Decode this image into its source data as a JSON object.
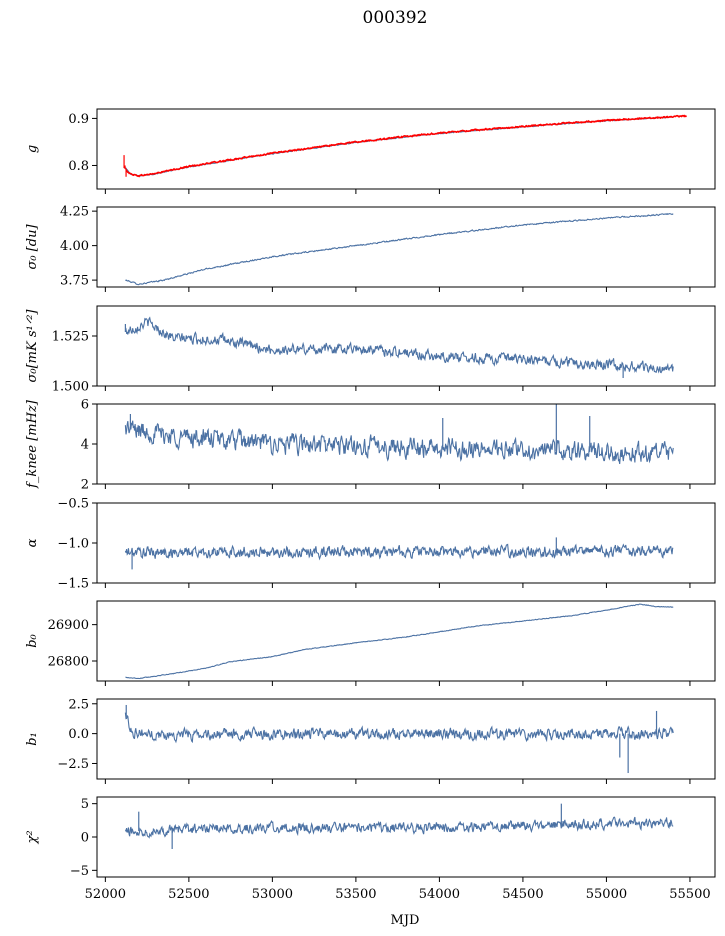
{
  "title": "000392",
  "colors": {
    "series": "#4c72a4",
    "overlay": "#ff0000",
    "frame": "#000000",
    "background": "#ffffff"
  },
  "chart_data": {
    "type": "line",
    "x_label": "MJD",
    "x_range": [
      51950,
      55650
    ],
    "x_ticks": [
      52000,
      52500,
      53000,
      53500,
      54000,
      54500,
      55000,
      55500
    ],
    "x_tick_labels": [
      "52000",
      "52500",
      "53000",
      "53500",
      "54000",
      "54500",
      "55000",
      "55500"
    ],
    "x_data_range": [
      52120,
      55400
    ],
    "panels": [
      {
        "ylabel": "g",
        "ylim": [
          0.75,
          0.92
        ],
        "yticks": [
          0.8,
          0.9
        ],
        "ytick_labels": [
          "0.8",
          "0.9"
        ],
        "series": [
          {
            "color": "series",
            "profile": [
              [
                52120,
                0.795
              ],
              [
                52150,
                0.782
              ],
              [
                52200,
                0.778
              ],
              [
                52300,
                0.782
              ],
              [
                52500,
                0.797
              ],
              [
                53000,
                0.825
              ],
              [
                53500,
                0.849
              ],
              [
                54000,
                0.868
              ],
              [
                54500,
                0.882
              ],
              [
                55000,
                0.895
              ],
              [
                55400,
                0.903
              ]
            ],
            "noise": 0.0008,
            "spikes": []
          },
          {
            "color": "overlay",
            "x_end": 55480,
            "profile": [
              [
                52110,
                0.795
              ],
              [
                52150,
                0.782
              ],
              [
                52200,
                0.778
              ],
              [
                52300,
                0.783
              ],
              [
                52500,
                0.798
              ],
              [
                53000,
                0.826
              ],
              [
                53500,
                0.85
              ],
              [
                54000,
                0.869
              ],
              [
                54500,
                0.883
              ],
              [
                55000,
                0.896
              ],
              [
                55480,
                0.905
              ]
            ],
            "noise": 0.0012,
            "spikes": [
              [
                52112,
                0.822
              ],
              [
                52118,
                0.8
              ],
              [
                52124,
                0.776
              ]
            ]
          }
        ]
      },
      {
        "ylabel": "σ₀ [du]",
        "ylim": [
          3.7,
          4.28
        ],
        "yticks": [
          3.75,
          4.0,
          4.25
        ],
        "ytick_labels": [
          "3.75",
          "4.00",
          "4.25"
        ],
        "series": [
          {
            "color": "series",
            "profile": [
              [
                52120,
                3.75
              ],
              [
                52200,
                3.72
              ],
              [
                52350,
                3.75
              ],
              [
                52600,
                3.83
              ],
              [
                53000,
                3.92
              ],
              [
                53500,
                4.0
              ],
              [
                54000,
                4.08
              ],
              [
                54500,
                4.15
              ],
              [
                55000,
                4.2
              ],
              [
                55400,
                4.23
              ]
            ],
            "noise": 0.004,
            "spikes": []
          }
        ]
      },
      {
        "ylabel": "σ₀[mK s¹ᐟ²]",
        "ylim": [
          1.5,
          1.54
        ],
        "yticks": [
          1.5,
          1.525
        ],
        "ytick_labels": [
          "1.500",
          "1.525"
        ],
        "series": [
          {
            "color": "series",
            "profile": [
              [
                52120,
                1.527
              ],
              [
                52250,
                1.532
              ],
              [
                52400,
                1.524
              ],
              [
                52700,
                1.523
              ],
              [
                53000,
                1.518
              ],
              [
                53500,
                1.519
              ],
              [
                54000,
                1.515
              ],
              [
                54500,
                1.513
              ],
              [
                55000,
                1.511
              ],
              [
                55400,
                1.508
              ]
            ],
            "noise": 0.0022,
            "spikes": [
              [
                52120,
                1.531
              ],
              [
                55100,
                1.504
              ]
            ]
          }
        ]
      },
      {
        "ylabel": "f_knee [mHz]",
        "ylim": [
          2,
          6
        ],
        "yticks": [
          2,
          4,
          6
        ],
        "ytick_labels": [
          "2",
          "4",
          "6"
        ],
        "series": [
          {
            "color": "series",
            "profile": [
              [
                52120,
                4.8
              ],
              [
                52400,
                4.4
              ],
              [
                53000,
                4.0
              ],
              [
                54000,
                3.8
              ],
              [
                55400,
                3.5
              ]
            ],
            "noise": 0.42,
            "spikes": [
              [
                52150,
                5.5
              ],
              [
                54700,
                6.0
              ],
              [
                54900,
                5.4
              ],
              [
                54020,
                5.3
              ]
            ]
          }
        ]
      },
      {
        "ylabel": "α",
        "ylim": [
          -1.5,
          -0.5
        ],
        "yticks": [
          -1.5,
          -1.0,
          -0.5
        ],
        "ytick_labels": [
          "−1.5",
          "−1.0",
          "−0.5"
        ],
        "series": [
          {
            "color": "series",
            "profile": [
              [
                52120,
                -1.12
              ],
              [
                55400,
                -1.1
              ]
            ],
            "noise": 0.06,
            "spikes": [
              [
                52160,
                -1.33
              ],
              [
                54700,
                -0.93
              ]
            ]
          }
        ]
      },
      {
        "ylabel": "b₀",
        "ylim": [
          26745,
          26965
        ],
        "yticks": [
          26800,
          26900
        ],
        "ytick_labels": [
          "26800",
          "26900"
        ],
        "series": [
          {
            "color": "series",
            "profile": [
              [
                52120,
                26755
              ],
              [
                52200,
                26752
              ],
              [
                52400,
                26765
              ],
              [
                52600,
                26780
              ],
              [
                52750,
                26798
              ],
              [
                53000,
                26812
              ],
              [
                53200,
                26832
              ],
              [
                53500,
                26850
              ],
              [
                53800,
                26866
              ],
              [
                54000,
                26880
              ],
              [
                54200,
                26895
              ],
              [
                54500,
                26910
              ],
              [
                54800,
                26925
              ],
              [
                55000,
                26940
              ],
              [
                55200,
                26956
              ],
              [
                55300,
                26950
              ],
              [
                55400,
                26948
              ]
            ],
            "noise": 0.8,
            "spikes": []
          }
        ]
      },
      {
        "ylabel": "b₁",
        "ylim": [
          -3.8,
          2.9
        ],
        "yticks": [
          -2.5,
          0.0,
          2.5
        ],
        "ytick_labels": [
          "−2.5",
          "0.0",
          "2.5"
        ],
        "series": [
          {
            "color": "series",
            "profile": [
              [
                52120,
                1.6
              ],
              [
                52160,
                0.2
              ],
              [
                52300,
                -0.1
              ],
              [
                53000,
                -0.05
              ],
              [
                55400,
                0.0
              ]
            ],
            "noise": 0.38,
            "spikes": [
              [
                52125,
                2.4
              ],
              [
                55130,
                -3.3
              ],
              [
                55080,
                -2.0
              ],
              [
                55300,
                1.9
              ]
            ]
          }
        ]
      },
      {
        "ylabel": "χ²",
        "ylim": [
          -6,
          6
        ],
        "yticks": [
          -5,
          0,
          5
        ],
        "ytick_labels": [
          "−5",
          "0",
          "5"
        ],
        "series": [
          {
            "color": "series",
            "profile": [
              [
                52120,
                0.8
              ],
              [
                52500,
                1.2
              ],
              [
                53000,
                1.4
              ],
              [
                54000,
                1.4
              ],
              [
                55400,
                2.2
              ]
            ],
            "noise": 0.65,
            "spikes": [
              [
                54730,
                5.0
              ],
              [
                52400,
                -1.8
              ],
              [
                52200,
                3.8
              ]
            ]
          }
        ]
      }
    ]
  }
}
